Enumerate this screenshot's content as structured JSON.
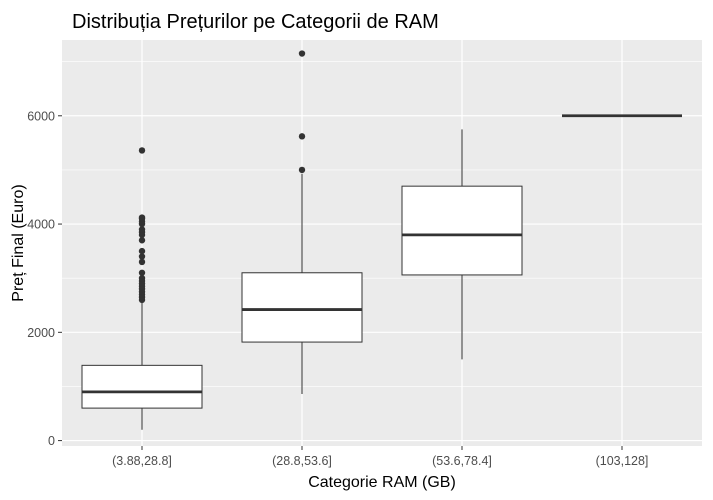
{
  "chart_data": {
    "type": "boxplot",
    "title": "Distribuția Prețurilor pe Categorii de RAM",
    "xlabel": "Categorie RAM (GB)",
    "ylabel": "Preț Final (Euro)",
    "ylim": [
      -100,
      7400
    ],
    "yticks": [
      0,
      2000,
      4000,
      6000
    ],
    "ytick_labels": [
      "0",
      "2000",
      "4000",
      "6000"
    ],
    "grid": true,
    "colors": {
      "panel": "#EBEBEB",
      "grid_major": "#FFFFFF",
      "box_fill": "#FFFFFF",
      "box_line": "#333333",
      "outlier": "#333333",
      "tick_label": "#4D4D4D"
    },
    "categories": [
      "(3.88,28.8]",
      "(28.8,53.6]",
      "(53.6,78.4]",
      "(103,128]"
    ],
    "boxes": [
      {
        "category": "(3.88,28.8]",
        "whisker_low": 200,
        "q1": 600,
        "median": 900,
        "q3": 1390,
        "whisker_high": 2560,
        "outliers": [
          2600,
          2650,
          2700,
          2750,
          2800,
          2850,
          2900,
          2950,
          3000,
          3100,
          3300,
          3400,
          3500,
          3700,
          3800,
          3850,
          3900,
          4000,
          4050,
          4100,
          4120,
          5360
        ]
      },
      {
        "category": "(28.8,53.6]",
        "whisker_low": 860,
        "q1": 1820,
        "median": 2420,
        "q3": 3100,
        "whisker_high": 4930,
        "outliers": [
          5000,
          5620,
          7150
        ]
      },
      {
        "category": "(53.6,78.4]",
        "whisker_low": 1500,
        "q1": 3060,
        "median": 3800,
        "q3": 4700,
        "whisker_high": 5750,
        "outliers": []
      },
      {
        "category": "(103,128]",
        "whisker_low": 6000,
        "q1": 6000,
        "median": 6000,
        "q3": 6000,
        "whisker_high": 6000,
        "outliers": []
      }
    ]
  }
}
